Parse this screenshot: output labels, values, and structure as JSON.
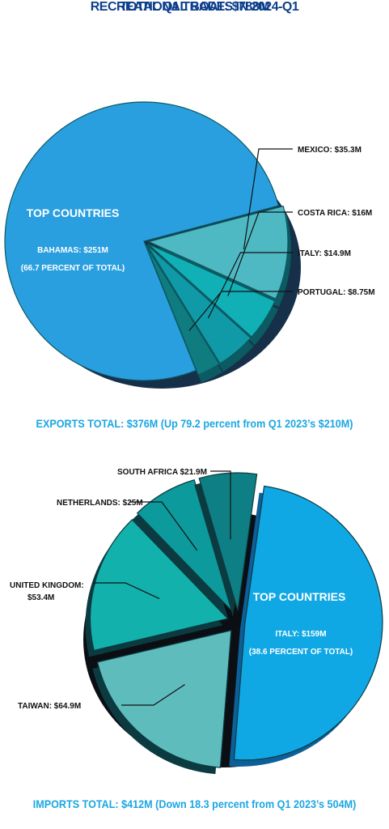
{
  "title": "RECREATIONAL BOATS IN 2024-Q1",
  "subtitle": "TOTAL Q1 TRADE: $788M",
  "colors": {
    "title": "#0d3f8c",
    "accent": "#1aa6e2",
    "slice_colors": [
      "#2a9fe0",
      "#4fb9c3",
      "#10b0b6",
      "#109aa8",
      "#0f7d80"
    ]
  },
  "chart_data": [
    {
      "type": "pie",
      "name": "exports",
      "callout": {
        "heading": "TOP COUNTRIES",
        "line1": "BAHAMAS: $251M",
        "line2": "(66.7 PERCENT OF TOTAL)"
      },
      "slices": [
        {
          "label": "BAHAMAS: $251M",
          "value": 251
        },
        {
          "label": "MEXICO: $35.3M",
          "value": 35.3
        },
        {
          "label": "COSTA RICA: $16M",
          "value": 16
        },
        {
          "label": "ITALY: $14.9M",
          "value": 14.9
        },
        {
          "label": "PORTUGAL: $8.75M",
          "value": 8.75
        }
      ],
      "total_text": "EXPORTS TOTAL: $376M (Up 79.2 percent from Q1 2023’s $210M)"
    },
    {
      "type": "pie",
      "name": "imports",
      "callout": {
        "heading": "TOP COUNTRIES",
        "line1": "ITALY: $159M",
        "line2": "(38.6 PERCENT OF TOTAL)"
      },
      "slices": [
        {
          "label": "ITALY: $159M",
          "value": 159
        },
        {
          "label": "TAIWAN: $64.9M",
          "value": 64.9
        },
        {
          "label": "UNITED KINGDOM: $53.4M",
          "value": 53.4
        },
        {
          "label": "NETHERLANDS: $25M",
          "value": 25
        },
        {
          "label": "SOUTH AFRICA $21.9M",
          "value": 21.9
        }
      ],
      "total_text": "IMPORTS TOTAL: $412M (Down 18.3 percent from Q1 2023’s 504M)"
    }
  ]
}
